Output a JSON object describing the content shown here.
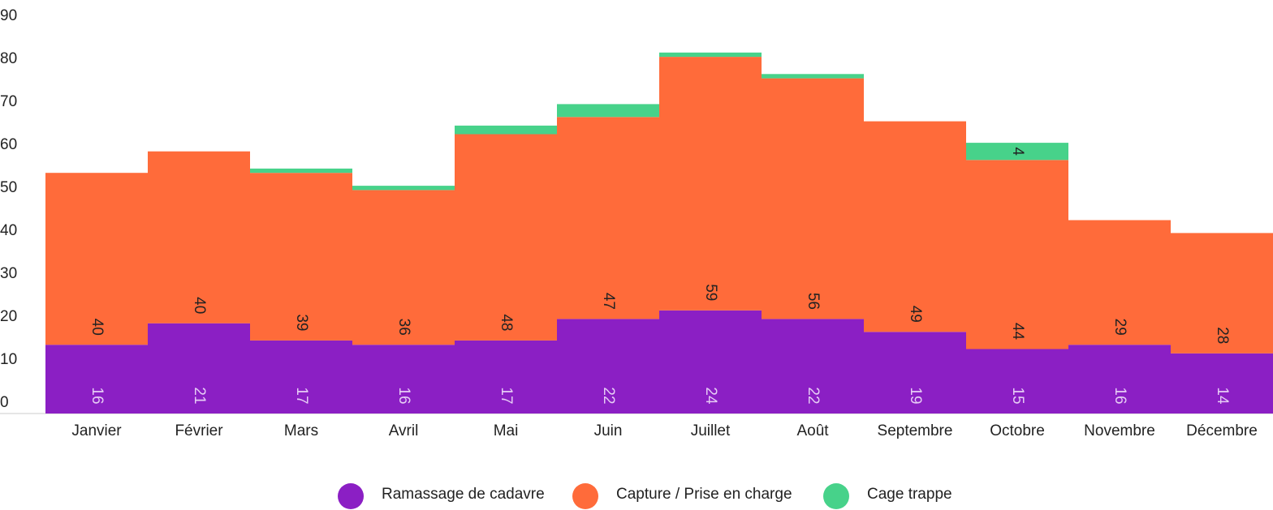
{
  "chart_data": {
    "type": "stacked_bar",
    "categories": [
      "Janvier",
      "Février",
      "Mars",
      "Avril",
      "Mai",
      "Juin",
      "Juillet",
      "Août",
      "Septembre",
      "Octobre",
      "Novembre",
      "Décembre"
    ],
    "series": [
      {
        "name": "Ramassage de cadavre",
        "color": "#8b1fc4",
        "values": [
          16,
          21,
          17,
          16,
          17,
          22,
          24,
          22,
          19,
          15,
          16,
          14
        ]
      },
      {
        "name": "Capture / Prise en charge",
        "color": "#ff6b3a",
        "values": [
          40,
          40,
          39,
          36,
          48,
          47,
          59,
          56,
          49,
          44,
          29,
          28
        ]
      },
      {
        "name": "Cage trappe",
        "color": "#47d28a",
        "values": [
          0,
          0,
          1,
          1,
          2,
          3,
          1,
          1,
          0,
          4,
          0,
          0
        ],
        "value_labels": [
          null,
          null,
          null,
          null,
          null,
          null,
          null,
          null,
          null,
          "4",
          null,
          null
        ]
      }
    ],
    "ylim": [
      0,
      90
    ],
    "yticks": [
      0,
      10,
      20,
      30,
      40,
      50,
      60,
      70,
      80,
      90
    ],
    "legend": "bottom"
  }
}
